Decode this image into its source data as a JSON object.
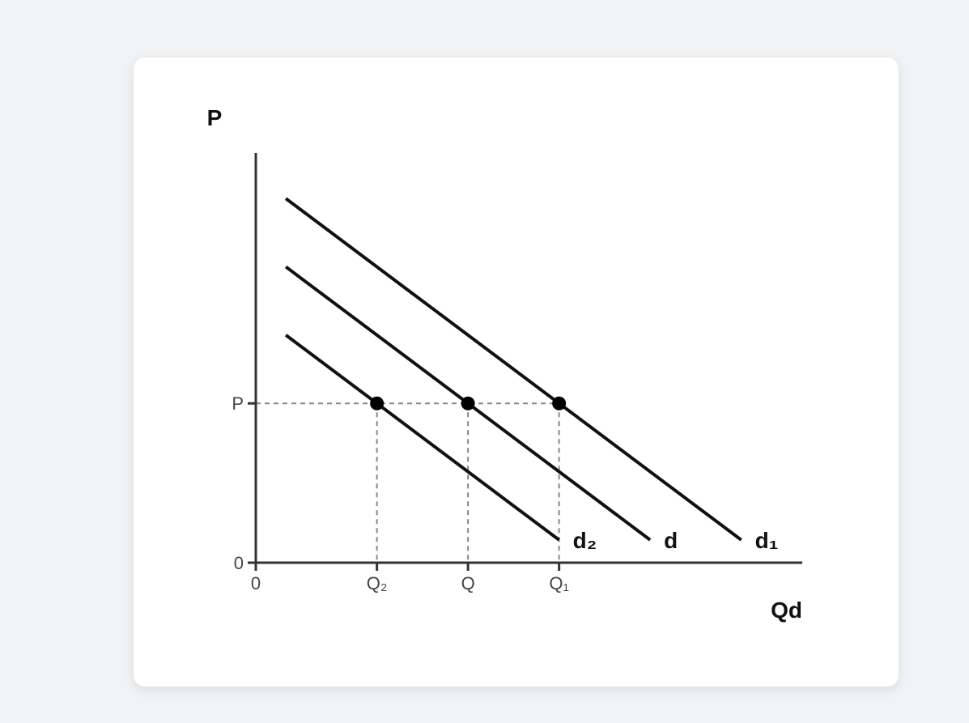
{
  "chart_data": {
    "type": "line",
    "ylabel": "P",
    "xlabel": "Qd",
    "xlim": [
      0,
      6
    ],
    "ylim": [
      0,
      4.5
    ],
    "price_level": 1.75,
    "x_ticks": [
      {
        "value": 0,
        "label": "0"
      },
      {
        "value": 1.33,
        "label": "Q₂"
      },
      {
        "value": 2.33,
        "label": "Q"
      },
      {
        "value": 3.33,
        "label": "Q₁"
      }
    ],
    "y_ticks": [
      {
        "value": 0,
        "label": "0"
      },
      {
        "value": 1.75,
        "label": "P"
      }
    ],
    "series": [
      {
        "name": "d₂",
        "x": [
          0.33,
          3.33
        ],
        "y": [
          2.5,
          0.25
        ],
        "equilibrium": [
          1.33,
          1.75
        ]
      },
      {
        "name": "d",
        "x": [
          0.33,
          4.33
        ],
        "y": [
          3.25,
          0.25
        ],
        "equilibrium": [
          2.33,
          1.75
        ]
      },
      {
        "name": "d₁",
        "x": [
          0.33,
          5.33
        ],
        "y": [
          4.0,
          0.25
        ],
        "equilibrium": [
          3.33,
          1.75
        ]
      }
    ],
    "colors": {
      "curve": "#111111",
      "axis": "#333333",
      "guide": "#888888",
      "point": "#000000"
    },
    "grid": false,
    "legend": "none"
  }
}
